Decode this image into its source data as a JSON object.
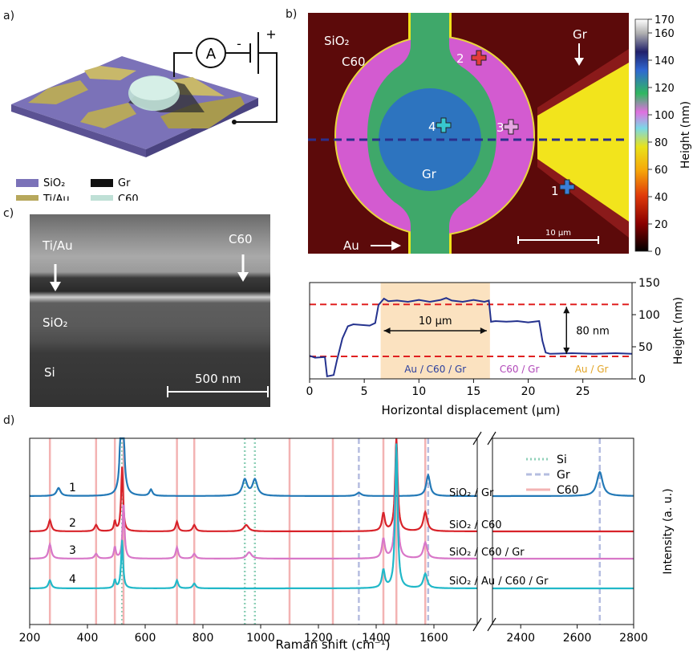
{
  "panels": {
    "a": "a)",
    "b": "b)",
    "c": "c)",
    "d": "d)"
  },
  "panel_a": {
    "ammeter": "A",
    "minus": "-",
    "plus": "+",
    "legend": [
      {
        "label": "SiO₂",
        "color": "#7b72b8"
      },
      {
        "label": "Gr",
        "color": "#111111"
      },
      {
        "label": "Ti/Au",
        "color": "#b7a85c"
      },
      {
        "label": "C60",
        "color": "#bfe0d6"
      }
    ]
  },
  "panel_b_map": {
    "labels": {
      "sio2": "SiO₂",
      "c60": "C60",
      "gr_top": "Gr",
      "gr_center": "Gr",
      "au": "Au",
      "scalebar": "10 μm"
    },
    "markers": [
      {
        "label": "1",
        "color": "#3a7fd8"
      },
      {
        "label": "2",
        "color": "#e23b3b"
      },
      {
        "label": "3",
        "color": "#e6a6e2"
      },
      {
        "label": "4",
        "color": "#38c7cf"
      }
    ],
    "colorbar": {
      "label": "Height (nm)",
      "ticks": [
        "0",
        "20",
        "40",
        "60",
        "80",
        "100",
        "120",
        "140",
        "160",
        "170"
      ]
    }
  },
  "panel_c": {
    "labels": {
      "tiau": "Ti/Au",
      "c60": "C60",
      "sio2": "SiO₂",
      "si": "Si",
      "scalebar": "500 nm"
    }
  },
  "chart_data": [
    {
      "type": "line",
      "xlabel": "Horizontal displacement (μm)",
      "ylabel": "Height (nm)",
      "xlim": [
        0,
        29.5
      ],
      "ylim": [
        0,
        150
      ],
      "xticks": [
        0,
        5,
        10,
        15,
        20,
        25
      ],
      "yticks": [
        0,
        50,
        100,
        150
      ],
      "series": [
        {
          "x": [
            0,
            0.5,
            1.4,
            1.6,
            2.2,
            2.5,
            3.0,
            3.5,
            4.0,
            5.5,
            6.0,
            6.3,
            6.8,
            7.2,
            8,
            9,
            10,
            11,
            12,
            12.5,
            13,
            14,
            15,
            16,
            16.4,
            16.6,
            17,
            18,
            19,
            20,
            21,
            21.3,
            21.6,
            22,
            24,
            26,
            28,
            29.5
          ],
          "y": [
            35,
            34,
            33,
            5,
            5,
            30,
            62,
            83,
            84,
            84,
            86,
            116,
            124,
            122,
            121,
            121,
            122,
            121,
            122,
            127,
            121,
            121,
            122,
            121,
            121,
            90,
            89,
            90,
            89,
            89,
            89,
            60,
            40,
            40,
            39,
            40,
            39,
            40
          ]
        }
      ],
      "hlines": [
        35,
        116
      ],
      "shaded_region": [
        6.5,
        16.5
      ],
      "annotations": {
        "width": "10 μm",
        "height": "80 nm"
      },
      "region_labels": [
        {
          "text": "Au / C60 / Gr",
          "color": "#2b3f9e"
        },
        {
          "text": "C60 / Gr",
          "color": "#b046b8"
        },
        {
          "text": "Au / Gr",
          "color": "#e1a323"
        }
      ]
    },
    {
      "type": "line",
      "xlabel": "Raman shift (cm⁻¹)",
      "ylabel": "Intensity (a. u.)",
      "xticks_left": [
        "200",
        "400",
        "600",
        "800",
        "1000",
        "1200",
        "1400",
        "1600"
      ],
      "xticks_right": [
        "2400",
        "2600",
        "2800"
      ],
      "legend": [
        "Si",
        "Gr",
        "C60"
      ],
      "vlines": {
        "Si": [
          520,
          945,
          980
        ],
        "Gr": [
          1340,
          1580,
          2680
        ],
        "C60": [
          270,
          430,
          495,
          525,
          710,
          770,
          1100,
          1250,
          1425,
          1470,
          1570
        ]
      },
      "series": [
        {
          "name": "1",
          "label": "SiO₂ / Gr",
          "color": "#2379b7"
        },
        {
          "name": "2",
          "label": "SiO₂ / C60",
          "color": "#d8232a"
        },
        {
          "name": "3",
          "label": "SiO₂ / C60 / Gr",
          "color": "#d877c8"
        },
        {
          "name": "4",
          "label": "SiO₂ / Au / C60 / Gr",
          "color": "#21b8c8"
        }
      ]
    }
  ]
}
